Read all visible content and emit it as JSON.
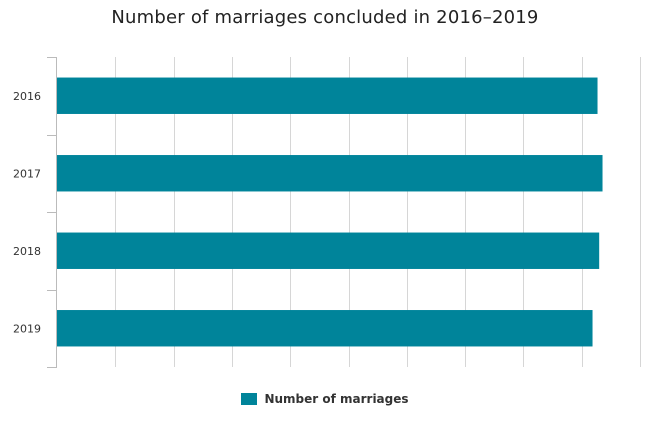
{
  "chart_data": {
    "type": "bar",
    "orientation": "horizontal",
    "title": "Number of marriages concluded in 2016–2019",
    "categories": [
      "2016",
      "2017",
      "2018",
      "2019"
    ],
    "series": [
      {
        "name": "Number of marriages",
        "values": [
          6490,
          6550,
          6510,
          6430
        ],
        "color": "#00849a"
      }
    ],
    "xlim": [
      0,
      7000
    ],
    "x_tick_labels_visible": false,
    "grid": true,
    "legend_position": "bottom-center"
  }
}
